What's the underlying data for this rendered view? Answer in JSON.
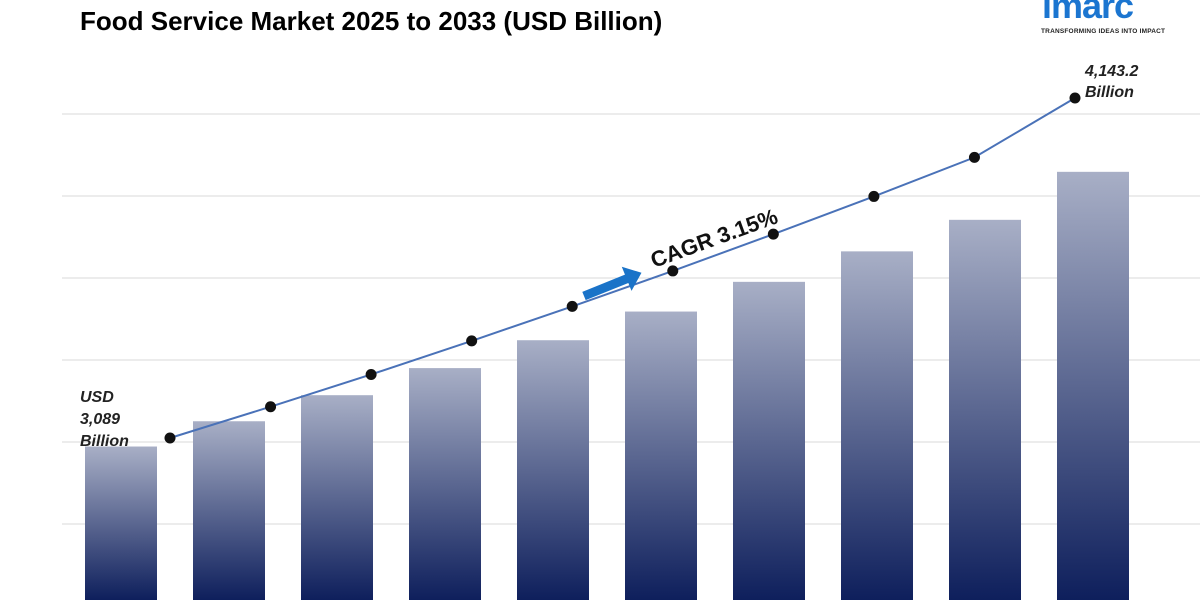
{
  "header": {
    "title": "Food Service Market 2025 to 2033 (USD Billion)"
  },
  "logo": {
    "word": "imarc",
    "tagline": "TRANSFORMING IDEAS INTO IMPACT"
  },
  "colors": {
    "bar_top": "#a8afc6",
    "bar_bottom": "#0e1f5c",
    "line": "#4a72b8",
    "marker": "#111111",
    "arrow": "#1a73c8",
    "grid": "#d9d9d9"
  },
  "chart_data": {
    "type": "bar",
    "title": "Food Service Market 2025 to 2033 (USD Billion)",
    "categories": [
      "",
      "",
      "",
      "",
      "",
      "",
      "",
      "",
      "",
      ""
    ],
    "series": [
      {
        "values": [
          3089,
          3186,
          3286,
          3390,
          3497,
          3607,
          3721,
          3838,
          3959,
          4143.2
        ]
      }
    ],
    "trend_line": {
      "values": [
        3089,
        3186,
        3286,
        3390,
        3497,
        3607,
        3721,
        3838,
        3959,
        4143.2
      ]
    },
    "annotations": {
      "start_lines": [
        "USD",
        "3,089",
        "Billion"
      ],
      "end_lines": [
        "4,143.2",
        "Billion"
      ],
      "cagr": "CAGR  3.15%"
    },
    "grid": true
  }
}
